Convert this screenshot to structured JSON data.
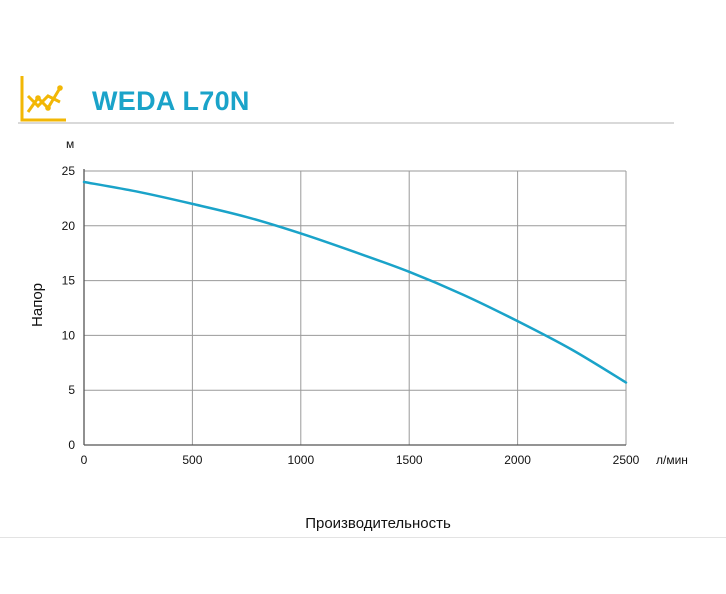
{
  "header": {
    "title": "WEDA L70N",
    "icon": "line-chart-icon",
    "icon_color": "#f2b705"
  },
  "chart_data": {
    "type": "line",
    "title": "WEDA L70N",
    "xlabel": "Производительность",
    "ylabel": "Напор",
    "x_unit": "л/мин",
    "y_unit": "м",
    "xlim": [
      0,
      2500
    ],
    "ylim": [
      0,
      25
    ],
    "x_ticks": [
      0,
      500,
      1000,
      1500,
      2000,
      2500
    ],
    "y_ticks": [
      0,
      5,
      10,
      15,
      20,
      25
    ],
    "grid": true,
    "series": [
      {
        "color": "#1aa3c9",
        "x": [
          0,
          250,
          500,
          750,
          1000,
          1250,
          1500,
          1750,
          2000,
          2250,
          2500
        ],
        "y": [
          24.0,
          23.1,
          22.0,
          20.8,
          19.3,
          17.6,
          15.8,
          13.7,
          11.3,
          8.7,
          5.7
        ]
      }
    ]
  }
}
